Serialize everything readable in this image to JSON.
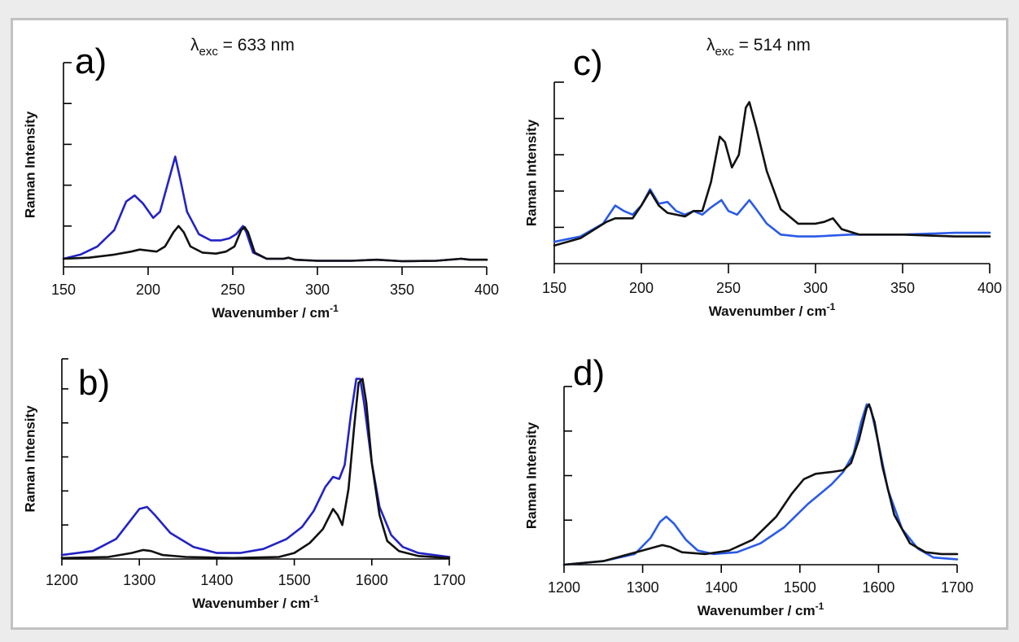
{
  "figure": {
    "titles": [
      {
        "lambda": "λ",
        "sub": "exc",
        "rest": " = 633 nm"
      },
      {
        "lambda": "λ",
        "sub": "exc",
        "rest": " = 514 nm"
      }
    ]
  },
  "chart_data": [
    {
      "type": "line",
      "panel_label": "a)",
      "xlabel": "Wavenumber / cm",
      "xlabel_sup": "-1",
      "ylabel": "Raman Intensity",
      "xlim": [
        150,
        400
      ],
      "ylim": [
        0,
        1
      ],
      "x_ticks": [
        150,
        200,
        250,
        300,
        350,
        400
      ],
      "y_ticks": [
        0.2,
        0.4,
        0.6,
        0.8,
        1.0
      ],
      "series": [
        {
          "color": "#2323c4",
          "points": [
            [
              150,
              0.04
            ],
            [
              160,
              0.06
            ],
            [
              170,
              0.1
            ],
            [
              180,
              0.18
            ],
            [
              187,
              0.32
            ],
            [
              192,
              0.35
            ],
            [
              197,
              0.31
            ],
            [
              203,
              0.24
            ],
            [
              207,
              0.27
            ],
            [
              212,
              0.42
            ],
            [
              216,
              0.54
            ],
            [
              219,
              0.43
            ],
            [
              223,
              0.27
            ],
            [
              230,
              0.16
            ],
            [
              237,
              0.13
            ],
            [
              243,
              0.13
            ],
            [
              248,
              0.14
            ],
            [
              252,
              0.16
            ],
            [
              256,
              0.2
            ],
            [
              258,
              0.17
            ],
            [
              262,
              0.07
            ],
            [
              270,
              0.04
            ],
            [
              280,
              0.04
            ],
            [
              283,
              0.045
            ],
            [
              287,
              0.035
            ],
            [
              300,
              0.03
            ],
            [
              320,
              0.03
            ],
            [
              335,
              0.035
            ],
            [
              350,
              0.028
            ],
            [
              370,
              0.03
            ],
            [
              385,
              0.04
            ],
            [
              390,
              0.035
            ],
            [
              400,
              0.035
            ]
          ]
        },
        {
          "color": "#111111",
          "points": [
            [
              150,
              0.04
            ],
            [
              165,
              0.045
            ],
            [
              180,
              0.06
            ],
            [
              190,
              0.075
            ],
            [
              195,
              0.085
            ],
            [
              200,
              0.08
            ],
            [
              205,
              0.075
            ],
            [
              210,
              0.1
            ],
            [
              215,
              0.17
            ],
            [
              218,
              0.2
            ],
            [
              221,
              0.17
            ],
            [
              225,
              0.1
            ],
            [
              232,
              0.07
            ],
            [
              240,
              0.065
            ],
            [
              246,
              0.075
            ],
            [
              251,
              0.1
            ],
            [
              255,
              0.18
            ],
            [
              257,
              0.195
            ],
            [
              259,
              0.17
            ],
            [
              263,
              0.07
            ],
            [
              270,
              0.04
            ],
            [
              280,
              0.04
            ],
            [
              283,
              0.045
            ],
            [
              287,
              0.035
            ],
            [
              300,
              0.03
            ],
            [
              320,
              0.03
            ],
            [
              335,
              0.035
            ],
            [
              350,
              0.028
            ],
            [
              370,
              0.03
            ],
            [
              385,
              0.04
            ],
            [
              390,
              0.035
            ],
            [
              400,
              0.035
            ]
          ]
        }
      ]
    },
    {
      "type": "line",
      "panel_label": "b)",
      "xlabel": "Wavenumber / cm",
      "xlabel_sup": "-1",
      "ylabel": "Raman Intensity",
      "xlim": [
        1200,
        1700
      ],
      "ylim": [
        0,
        1
      ],
      "x_ticks": [
        1200,
        1300,
        1400,
        1500,
        1600,
        1700
      ],
      "y_ticks": [
        0.17,
        0.34,
        0.51,
        0.68,
        0.85,
        1.0
      ],
      "series": [
        {
          "color": "#2323c4",
          "points": [
            [
              1200,
              0.02
            ],
            [
              1240,
              0.04
            ],
            [
              1270,
              0.1
            ],
            [
              1290,
              0.2
            ],
            [
              1300,
              0.25
            ],
            [
              1310,
              0.26
            ],
            [
              1320,
              0.22
            ],
            [
              1340,
              0.13
            ],
            [
              1370,
              0.06
            ],
            [
              1400,
              0.03
            ],
            [
              1430,
              0.03
            ],
            [
              1460,
              0.05
            ],
            [
              1490,
              0.1
            ],
            [
              1510,
              0.16
            ],
            [
              1525,
              0.24
            ],
            [
              1540,
              0.36
            ],
            [
              1550,
              0.41
            ],
            [
              1558,
              0.4
            ],
            [
              1565,
              0.47
            ],
            [
              1573,
              0.72
            ],
            [
              1580,
              0.9
            ],
            [
              1585,
              0.9
            ],
            [
              1590,
              0.78
            ],
            [
              1600,
              0.48
            ],
            [
              1610,
              0.26
            ],
            [
              1625,
              0.12
            ],
            [
              1640,
              0.06
            ],
            [
              1660,
              0.03
            ],
            [
              1700,
              0.01
            ]
          ]
        },
        {
          "color": "#111111",
          "points": [
            [
              1200,
              0.005
            ],
            [
              1260,
              0.01
            ],
            [
              1290,
              0.03
            ],
            [
              1305,
              0.045
            ],
            [
              1315,
              0.04
            ],
            [
              1330,
              0.02
            ],
            [
              1360,
              0.01
            ],
            [
              1420,
              0.005
            ],
            [
              1480,
              0.01
            ],
            [
              1500,
              0.03
            ],
            [
              1520,
              0.08
            ],
            [
              1537,
              0.15
            ],
            [
              1550,
              0.25
            ],
            [
              1556,
              0.22
            ],
            [
              1562,
              0.17
            ],
            [
              1570,
              0.35
            ],
            [
              1577,
              0.65
            ],
            [
              1583,
              0.88
            ],
            [
              1588,
              0.9
            ],
            [
              1593,
              0.78
            ],
            [
              1600,
              0.48
            ],
            [
              1610,
              0.22
            ],
            [
              1620,
              0.09
            ],
            [
              1635,
              0.04
            ],
            [
              1660,
              0.015
            ],
            [
              1700,
              0.005
            ]
          ]
        }
      ]
    },
    {
      "type": "line",
      "panel_label": "c)",
      "xlabel": "Wavenumber / cm",
      "xlabel_sup": "-1",
      "ylabel": "Raman Intensity",
      "xlim": [
        150,
        400
      ],
      "ylim": [
        0,
        1
      ],
      "x_ticks": [
        150,
        200,
        250,
        300,
        350,
        400
      ],
      "y_ticks": [
        0.2,
        0.4,
        0.6,
        0.8,
        1.0
      ],
      "series": [
        {
          "color": "#2a5ae6",
          "points": [
            [
              150,
              0.12
            ],
            [
              165,
              0.15
            ],
            [
              178,
              0.22
            ],
            [
              185,
              0.32
            ],
            [
              190,
              0.29
            ],
            [
              195,
              0.27
            ],
            [
              200,
              0.32
            ],
            [
              205,
              0.41
            ],
            [
              210,
              0.33
            ],
            [
              215,
              0.34
            ],
            [
              220,
              0.29
            ],
            [
              225,
              0.27
            ],
            [
              230,
              0.29
            ],
            [
              235,
              0.27
            ],
            [
              240,
              0.31
            ],
            [
              246,
              0.35
            ],
            [
              250,
              0.29
            ],
            [
              255,
              0.27
            ],
            [
              262,
              0.35
            ],
            [
              266,
              0.3
            ],
            [
              272,
              0.22
            ],
            [
              280,
              0.16
            ],
            [
              290,
              0.15
            ],
            [
              300,
              0.15
            ],
            [
              320,
              0.16
            ],
            [
              350,
              0.16
            ],
            [
              380,
              0.17
            ],
            [
              400,
              0.17
            ]
          ]
        },
        {
          "color": "#111111",
          "points": [
            [
              150,
              0.1
            ],
            [
              165,
              0.14
            ],
            [
              180,
              0.23
            ],
            [
              185,
              0.25
            ],
            [
              195,
              0.25
            ],
            [
              200,
              0.32
            ],
            [
              205,
              0.4
            ],
            [
              210,
              0.32
            ],
            [
              215,
              0.28
            ],
            [
              225,
              0.26
            ],
            [
              230,
              0.29
            ],
            [
              235,
              0.29
            ],
            [
              240,
              0.45
            ],
            [
              245,
              0.7
            ],
            [
              248,
              0.67
            ],
            [
              252,
              0.53
            ],
            [
              256,
              0.6
            ],
            [
              260,
              0.86
            ],
            [
              262,
              0.89
            ],
            [
              266,
              0.75
            ],
            [
              272,
              0.51
            ],
            [
              280,
              0.3
            ],
            [
              290,
              0.22
            ],
            [
              300,
              0.22
            ],
            [
              305,
              0.23
            ],
            [
              310,
              0.25
            ],
            [
              315,
              0.19
            ],
            [
              325,
              0.16
            ],
            [
              350,
              0.16
            ],
            [
              380,
              0.15
            ],
            [
              400,
              0.15
            ]
          ]
        }
      ]
    },
    {
      "type": "line",
      "panel_label": "d)",
      "xlabel": "Wavenumber / cm",
      "xlabel_sup": "-1",
      "ylabel": "Raman Intensity",
      "xlim": [
        1200,
        1700
      ],
      "ylim": [
        0,
        1
      ],
      "x_ticks": [
        1200,
        1300,
        1400,
        1500,
        1600,
        1700
      ],
      "y_ticks": [
        0.25,
        0.5,
        0.75,
        1.0
      ],
      "series": [
        {
          "color": "#2a5ae6",
          "points": [
            [
              1200,
              0.0
            ],
            [
              1250,
              0.02
            ],
            [
              1290,
              0.06
            ],
            [
              1310,
              0.15
            ],
            [
              1322,
              0.24
            ],
            [
              1330,
              0.27
            ],
            [
              1340,
              0.23
            ],
            [
              1355,
              0.14
            ],
            [
              1370,
              0.08
            ],
            [
              1390,
              0.06
            ],
            [
              1420,
              0.07
            ],
            [
              1450,
              0.12
            ],
            [
              1480,
              0.21
            ],
            [
              1510,
              0.34
            ],
            [
              1540,
              0.45
            ],
            [
              1555,
              0.52
            ],
            [
              1568,
              0.62
            ],
            [
              1578,
              0.8
            ],
            [
              1585,
              0.9
            ],
            [
              1590,
              0.88
            ],
            [
              1600,
              0.68
            ],
            [
              1612,
              0.42
            ],
            [
              1630,
              0.2
            ],
            [
              1650,
              0.09
            ],
            [
              1670,
              0.04
            ],
            [
              1700,
              0.03
            ]
          ]
        },
        {
          "color": "#111111",
          "points": [
            [
              1200,
              0.0
            ],
            [
              1250,
              0.02
            ],
            [
              1300,
              0.08
            ],
            [
              1325,
              0.11
            ],
            [
              1335,
              0.1
            ],
            [
              1350,
              0.07
            ],
            [
              1380,
              0.06
            ],
            [
              1410,
              0.08
            ],
            [
              1440,
              0.14
            ],
            [
              1470,
              0.27
            ],
            [
              1490,
              0.4
            ],
            [
              1505,
              0.48
            ],
            [
              1520,
              0.51
            ],
            [
              1540,
              0.52
            ],
            [
              1555,
              0.53
            ],
            [
              1565,
              0.57
            ],
            [
              1575,
              0.7
            ],
            [
              1585,
              0.88
            ],
            [
              1588,
              0.9
            ],
            [
              1595,
              0.8
            ],
            [
              1605,
              0.55
            ],
            [
              1620,
              0.28
            ],
            [
              1640,
              0.12
            ],
            [
              1660,
              0.07
            ],
            [
              1680,
              0.06
            ],
            [
              1700,
              0.06
            ]
          ]
        }
      ]
    }
  ]
}
